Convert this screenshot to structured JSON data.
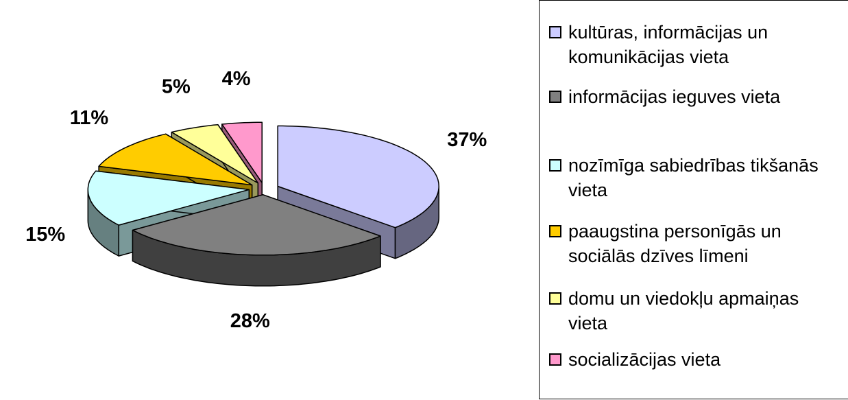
{
  "chart_data": {
    "type": "pie",
    "categories": [
      "kultūras, informācijas un komunikācijas vieta",
      "informācijas ieguves vieta",
      "nozīmīga sabiedrības tikšanās vieta",
      "paaugstina personīgās un sociālās dzīves līmeni",
      "domu un viedokļu apmaiņas vieta",
      "socializācijas vieta"
    ],
    "values": [
      37,
      28,
      15,
      11,
      5,
      4
    ],
    "value_labels": [
      "37%",
      "28%",
      "15%",
      "11%",
      "5%",
      "4%"
    ],
    "colors": [
      "#ccccff",
      "#808080",
      "#ccffff",
      "#ffcc00",
      "#ffff99",
      "#ff99cc"
    ],
    "legend": "right"
  }
}
